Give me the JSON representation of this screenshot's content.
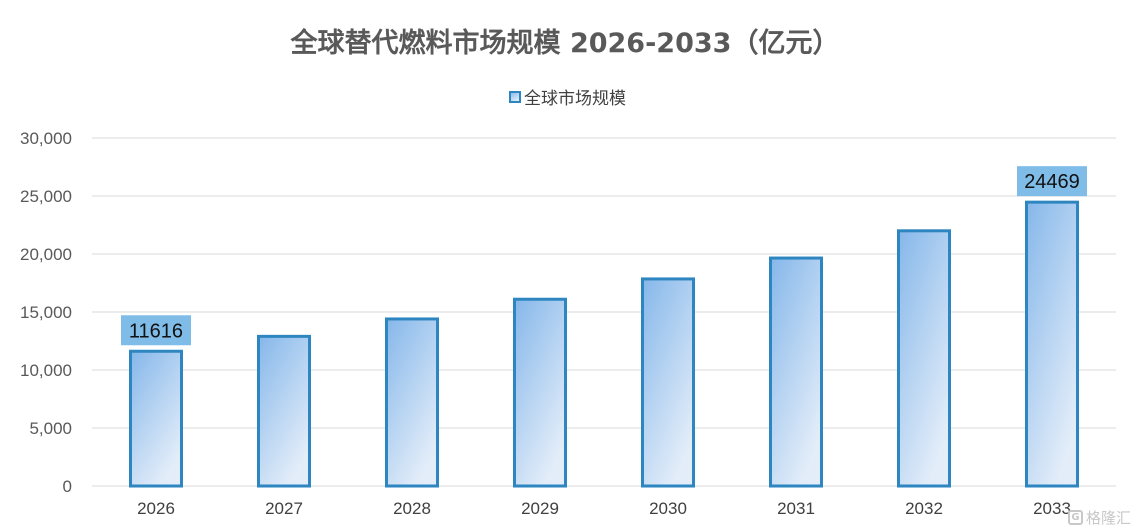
{
  "chart_data": {
    "type": "bar",
    "title": "全球替代燃料市场规模 2026-2033（亿元）",
    "legend": {
      "position": "top",
      "entries": [
        "全球市场规模"
      ]
    },
    "categories": [
      "2026",
      "2027",
      "2028",
      "2029",
      "2030",
      "2031",
      "2032",
      "2033"
    ],
    "series": [
      {
        "name": "全球市场规模",
        "values": [
          11616,
          12900,
          14400,
          16100,
          17850,
          19650,
          22000,
          24469
        ]
      }
    ],
    "data_labels": [
      {
        "category": "2026",
        "text": "11616"
      },
      {
        "category": "2033",
        "text": "24469"
      }
    ],
    "y_ticks": [
      "0",
      "5,000",
      "10,000",
      "15,000",
      "20,000",
      "25,000",
      "30,000"
    ],
    "ylim": [
      0,
      30000
    ],
    "grid": true,
    "xlabel": "",
    "ylabel": "",
    "colors": {
      "bar_border": "#2e86c1",
      "bar_fill_top": "#85b7ea",
      "bar_fill_bottom": "#e3edf9",
      "label_bg": "#7fbce8",
      "grid": "#d9d9d9"
    }
  },
  "watermark": {
    "icon": "gelonghui-logo-icon",
    "text": "格隆汇"
  }
}
